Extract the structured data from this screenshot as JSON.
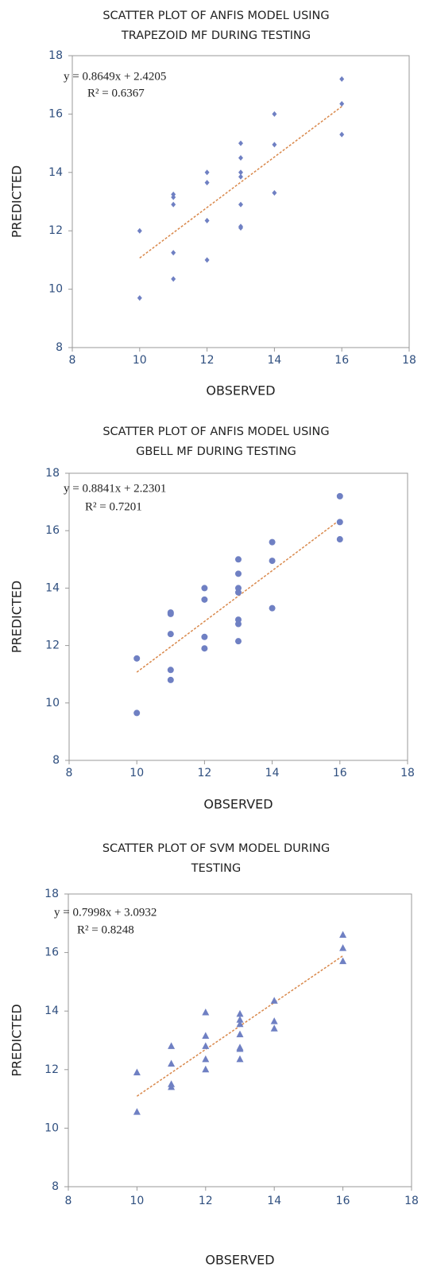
{
  "chart_data": [
    {
      "type": "scatter",
      "title": [
        "SCATTER PLOT OF ANFIS MODEL USING",
        "TRAPEZOID MF DURING TESTING"
      ],
      "xlabel": "OBSERVED",
      "ylabel": "PREDICTED",
      "marker": "diamond",
      "series": [
        {
          "color": "#6f80c3",
          "x": [
            16,
            16,
            16,
            14,
            14,
            14,
            13,
            13,
            13,
            13,
            13,
            13,
            13,
            12,
            12,
            12,
            12,
            11,
            11,
            11,
            11,
            11,
            10,
            10
          ],
          "y": [
            17.2,
            16.35,
            15.3,
            16,
            14.95,
            13.3,
            15,
            14.5,
            14,
            13.85,
            12.9,
            12.15,
            12.1,
            14,
            13.65,
            12.35,
            11,
            13.25,
            13.15,
            12.9,
            11.25,
            10.35,
            12,
            9.7
          ]
        }
      ],
      "trendline": {
        "slope": 0.8649,
        "intercept": 2.4205,
        "color": "#d9884b"
      },
      "annotations": [
        "y = 0.8649x + 2.4205",
        "R² = 0.6367"
      ],
      "xlim": [
        8,
        18
      ],
      "ylim": [
        8,
        18
      ],
      "xticks": [
        8,
        10,
        12,
        14,
        16,
        18
      ],
      "yticks": [
        8,
        10,
        12,
        14,
        16,
        18
      ]
    },
    {
      "type": "scatter",
      "title": [
        "SCATTER PLOT OF ANFIS MODEL USING",
        "GBELL MF DURING TESTING"
      ],
      "xlabel": "OBSERVED",
      "ylabel": "PREDICTED",
      "marker": "circle",
      "series": [
        {
          "color": "#6f80c3",
          "x": [
            16,
            16,
            16,
            14,
            14,
            14,
            13,
            13,
            13,
            13,
            13,
            13,
            13,
            12,
            12,
            12,
            12,
            11,
            11,
            11,
            11,
            11,
            10,
            10
          ],
          "y": [
            17.2,
            16.3,
            15.7,
            15.6,
            14.95,
            13.3,
            15,
            14.5,
            14,
            13.85,
            12.9,
            12.75,
            12.15,
            14,
            13.6,
            12.3,
            11.9,
            13.15,
            13.1,
            12.4,
            11.15,
            10.8,
            11.55,
            9.65
          ]
        }
      ],
      "trendline": {
        "slope": 0.8841,
        "intercept": 2.2301,
        "color": "#d9884b"
      },
      "annotations": [
        "y = 0.8841x + 2.2301",
        "R² = 0.7201"
      ],
      "xlim": [
        8,
        18
      ],
      "ylim": [
        8,
        18
      ],
      "xticks": [
        8,
        10,
        12,
        14,
        16,
        18
      ],
      "yticks": [
        8,
        10,
        12,
        14,
        16,
        18
      ]
    },
    {
      "type": "scatter",
      "title": [
        "SCATTER PLOT OF SVM MODEL DURING",
        "TESTING"
      ],
      "xlabel": "OBSERVED",
      "ylabel": "PREDICTED",
      "marker": "triangle",
      "series": [
        {
          "color": "#6f80c3",
          "x": [
            16,
            16,
            16,
            14,
            14,
            14,
            13,
            13,
            13,
            13,
            13,
            13,
            13,
            12,
            12,
            12,
            12,
            12,
            11,
            11,
            11,
            11,
            10,
            10
          ],
          "y": [
            16.6,
            16.15,
            15.7,
            14.35,
            13.65,
            13.4,
            13.9,
            13.7,
            13.55,
            13.2,
            12.75,
            12.7,
            12.35,
            13.95,
            13.15,
            12.8,
            12.35,
            12,
            12.8,
            12.2,
            11.5,
            11.4,
            11.9,
            10.55
          ]
        }
      ],
      "trendline": {
        "slope": 0.7998,
        "intercept": 3.0932,
        "color": "#d9884b"
      },
      "annotations": [
        "y = 0.7998x + 3.0932",
        "R² = 0.8248"
      ],
      "xlim": [
        8,
        18
      ],
      "ylim": [
        8,
        18
      ],
      "xticks": [
        8,
        10,
        12,
        14,
        16,
        18
      ],
      "yticks": [
        8,
        10,
        12,
        14,
        16,
        18
      ]
    }
  ]
}
